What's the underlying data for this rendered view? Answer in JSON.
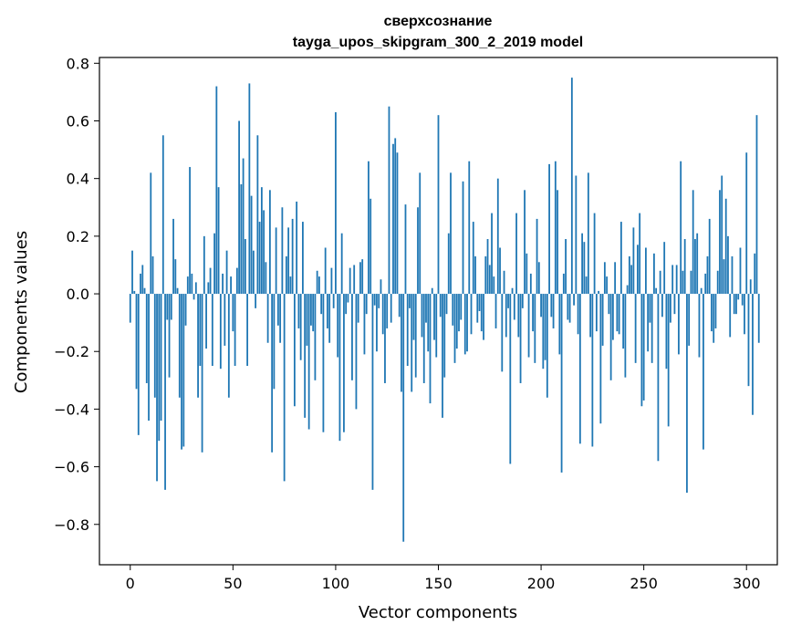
{
  "chart_data": {
    "type": "bar",
    "title": [
      "сверхсознание",
      "tayga_upos_skipgram_300_2_2019 model"
    ],
    "xlabel": "Vector components",
    "ylabel": "Components values",
    "xlim": [
      -15,
      315
    ],
    "ylim": [
      -0.94,
      0.82
    ],
    "x_ticks": [
      0,
      50,
      100,
      150,
      200,
      250,
      300
    ],
    "y_ticks": [
      -0.8,
      -0.6,
      -0.4,
      -0.2,
      0.0,
      0.2,
      0.4,
      0.6,
      0.8
    ],
    "y_tick_labels": [
      "−0.8",
      "−0.6",
      "−0.4",
      "−0.2",
      "0.0",
      "0.2",
      "0.4",
      "0.6",
      "0.8"
    ],
    "grid": false,
    "bar_color": "#1f77b4",
    "values": [
      -0.1,
      0.15,
      0.01,
      -0.33,
      -0.49,
      0.07,
      0.1,
      0.02,
      -0.31,
      -0.44,
      0.42,
      0.13,
      -0.36,
      -0.65,
      -0.51,
      -0.44,
      0.55,
      -0.68,
      -0.09,
      -0.29,
      -0.09,
      0.26,
      0.12,
      0.02,
      -0.36,
      -0.54,
      -0.53,
      -0.11,
      0.06,
      0.44,
      0.07,
      -0.02,
      0.04,
      -0.36,
      -0.25,
      -0.55,
      0.2,
      -0.19,
      0.04,
      0.09,
      -0.25,
      0.21,
      0.72,
      0.37,
      -0.26,
      0.07,
      -0.18,
      0.15,
      -0.36,
      0.06,
      -0.13,
      -0.25,
      0.09,
      0.6,
      0.38,
      0.47,
      0.19,
      -0.25,
      0.73,
      0.34,
      0.15,
      -0.05,
      0.55,
      0.25,
      0.37,
      0.29,
      0.11,
      -0.17,
      0.36,
      -0.55,
      -0.33,
      0.23,
      -0.11,
      -0.17,
      0.3,
      -0.65,
      0.13,
      0.23,
      0.06,
      0.26,
      -0.39,
      0.32,
      -0.12,
      -0.23,
      0.25,
      -0.43,
      -0.18,
      -0.47,
      -0.11,
      -0.13,
      -0.3,
      0.08,
      0.06,
      -0.07,
      -0.48,
      0.16,
      -0.12,
      -0.17,
      0.09,
      -0.05,
      0.63,
      -0.22,
      -0.51,
      0.21,
      -0.48,
      -0.07,
      -0.03,
      0.09,
      -0.3,
      0.1,
      -0.4,
      -0.1,
      0.11,
      0.12,
      -0.21,
      -0.07,
      0.46,
      0.33,
      -0.68,
      -0.04,
      -0.2,
      -0.05,
      0.05,
      -0.14,
      -0.31,
      -0.12,
      0.65,
      -0.1,
      0.52,
      0.54,
      0.49,
      -0.08,
      -0.34,
      -0.86,
      0.31,
      -0.25,
      -0.05,
      -0.34,
      -0.16,
      -0.29,
      0.3,
      0.42,
      -0.15,
      -0.31,
      -0.1,
      -0.2,
      -0.38,
      0.02,
      -0.16,
      -0.22,
      0.62,
      -0.08,
      -0.43,
      -0.29,
      -0.07,
      0.21,
      0.42,
      -0.11,
      -0.24,
      -0.19,
      -0.13,
      -0.09,
      0.39,
      -0.21,
      -0.2,
      0.46,
      -0.14,
      0.25,
      0.13,
      -0.1,
      -0.06,
      -0.13,
      -0.16,
      0.13,
      0.19,
      0.1,
      0.28,
      0.06,
      -0.12,
      0.4,
      0.16,
      -0.27,
      0.08,
      -0.15,
      -0.05,
      -0.59,
      0.02,
      -0.09,
      0.28,
      -0.15,
      -0.31,
      -0.05,
      0.36,
      0.14,
      -0.22,
      0.07,
      -0.13,
      -0.24,
      0.26,
      0.11,
      -0.08,
      -0.26,
      -0.23,
      -0.36,
      0.45,
      -0.08,
      -0.12,
      0.46,
      0.36,
      -0.21,
      -0.62,
      0.07,
      0.19,
      -0.09,
      -0.1,
      0.75,
      -0.04,
      0.41,
      -0.14,
      -0.52,
      0.21,
      0.18,
      0.06,
      0.42,
      -0.15,
      -0.53,
      0.28,
      -0.13,
      0.01,
      -0.45,
      -0.18,
      0.11,
      0.06,
      -0.07,
      -0.3,
      -0.16,
      0.11,
      -0.13,
      -0.14,
      0.25,
      -0.19,
      -0.29,
      0.03,
      0.13,
      0.1,
      0.23,
      -0.24,
      0.17,
      0.28,
      -0.39,
      -0.37,
      0.16,
      -0.2,
      -0.1,
      -0.24,
      0.14,
      0.02,
      -0.58,
      0.08,
      -0.08,
      0.18,
      -0.26,
      -0.46,
      -0.1,
      0.1,
      -0.07,
      0.1,
      -0.21,
      0.46,
      0.08,
      0.19,
      -0.69,
      -0.18,
      0.08,
      0.36,
      0.19,
      0.21,
      -0.22,
      0.02,
      -0.54,
      0.07,
      0.13,
      0.26,
      -0.13,
      -0.17,
      -0.12,
      0.08,
      0.36,
      0.41,
      0.12,
      0.33,
      0.2,
      -0.15,
      0.13,
      -0.07,
      -0.07,
      -0.02,
      0.16,
      -0.04,
      -0.14,
      0.49,
      -0.32,
      0.05,
      -0.42,
      0.14,
      0.62,
      -0.17
    ]
  }
}
